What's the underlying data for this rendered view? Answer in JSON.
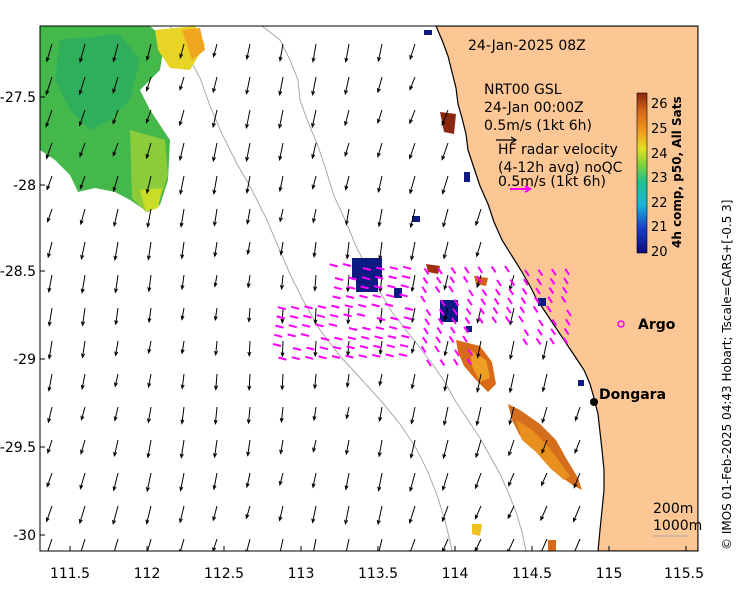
{
  "date_label": "24-Jan-2025 08Z",
  "model": {
    "name": "NRT00 GSL",
    "time": "24-Jan 00:00Z",
    "scale": "0.5m/s (1kt 6h)"
  },
  "hf_radar": {
    "title": "HF radar velocity",
    "subtitle": "(4-12h avg) noQC",
    "scale": "0.5m/s (1kt 6h)",
    "color": "#ff00ff"
  },
  "colorbar": {
    "title": "4h comp, p50, All Sats",
    "ticks": [
      "26",
      "25",
      "24",
      "23",
      "22",
      "21",
      "20"
    ]
  },
  "places": [
    {
      "name": "Argo",
      "symbol": "circle"
    },
    {
      "name": "Dongara",
      "symbol": "dot"
    }
  ],
  "isobaths": [
    "200m",
    "1000m"
  ],
  "credit": "© IMOS 01-Feb-2025 04:43 Hobart; Tscale=CARS+[-0.5 3]",
  "axes": {
    "x_ticks": [
      "111.5",
      "112",
      "112.5",
      "113",
      "113.5",
      "114",
      "114.5",
      "115",
      "115.5"
    ],
    "y_ticks": [
      "-27.5",
      "-28",
      "-28.5",
      "-29",
      "-29.5",
      "-30"
    ]
  },
  "colors": {
    "land": "#fdc795",
    "model_arrow": "#000000",
    "radar_arrow": "#ff00ff"
  }
}
